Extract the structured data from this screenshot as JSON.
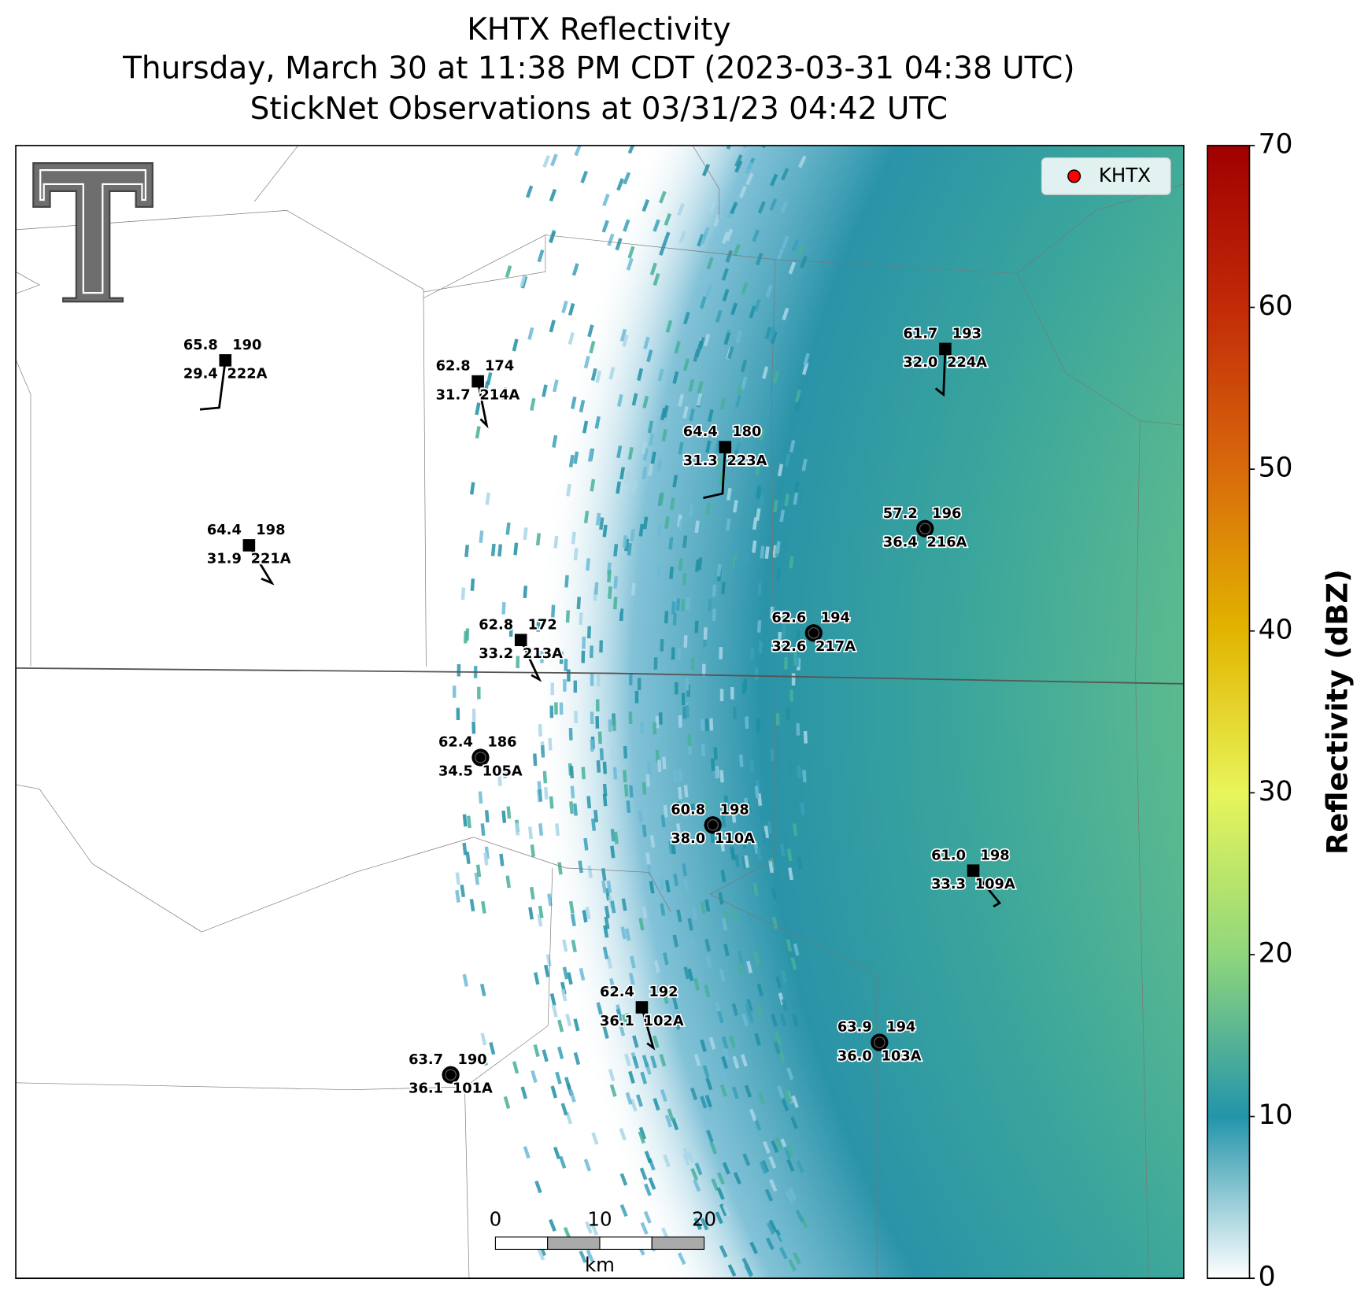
{
  "header": {
    "title": [
      "KHTX Reflectivity",
      "Thursday, March 30 at 11:38 PM CDT (2023-03-31 04:38 UTC)",
      "StickNet Observations at 03/31/23 04:42 UTC"
    ]
  },
  "legend": {
    "label": "KHTX",
    "color": "#ff0000"
  },
  "colorbar": {
    "label": "Reflectivity (dBZ)",
    "lim": [
      0,
      70
    ],
    "ticks": [
      0,
      10,
      20,
      30,
      40,
      50,
      60,
      70
    ],
    "colors": [
      "#ffffff",
      "#2394aa",
      "#8fd67c",
      "#e8f55a",
      "#e2b400",
      "#d86a0c",
      "#c22a08",
      "#a00000"
    ]
  },
  "scale_bar": {
    "ticks": [
      0,
      10,
      20
    ],
    "unit": "km"
  },
  "stations": [
    {
      "id": "222A",
      "temperature": "65.8",
      "value": 190,
      "dewpoint": "29.4",
      "marker": "square"
    },
    {
      "id": "214A",
      "temperature": "62.8",
      "value": 174,
      "dewpoint": "31.7",
      "marker": "square"
    },
    {
      "id": "223A",
      "temperature": "64.4",
      "value": 180,
      "dewpoint": "31.3",
      "marker": "square"
    },
    {
      "id": "224A",
      "temperature": "61.7",
      "value": 193,
      "dewpoint": "32.0",
      "marker": "square"
    },
    {
      "id": "216A",
      "temperature": "57.2",
      "value": 196,
      "dewpoint": "36.4",
      "marker": "circle"
    },
    {
      "id": "221A",
      "temperature": "64.4",
      "value": 198,
      "dewpoint": "31.9",
      "marker": "square"
    },
    {
      "id": "213A",
      "temperature": "62.8",
      "value": 172,
      "dewpoint": "33.2",
      "marker": "square"
    },
    {
      "id": "217A",
      "temperature": "62.6",
      "value": 194,
      "dewpoint": "32.6",
      "marker": "circle"
    },
    {
      "id": "105A",
      "temperature": "62.4",
      "value": 186,
      "dewpoint": "34.5",
      "marker": "circle"
    },
    {
      "id": "110A",
      "temperature": "60.8",
      "value": 198,
      "dewpoint": "38.0",
      "marker": "circle"
    },
    {
      "id": "109A",
      "temperature": "61.0",
      "value": 198,
      "dewpoint": "33.3",
      "marker": "square"
    },
    {
      "id": "102A",
      "temperature": "62.4",
      "value": 192,
      "dewpoint": "36.1",
      "marker": "square"
    },
    {
      "id": "103A",
      "temperature": "63.9",
      "value": 194,
      "dewpoint": "36.0",
      "marker": "circle"
    },
    {
      "id": "101A",
      "temperature": "63.7",
      "value": 190,
      "dewpoint": "36.1",
      "marker": "circle"
    }
  ]
}
